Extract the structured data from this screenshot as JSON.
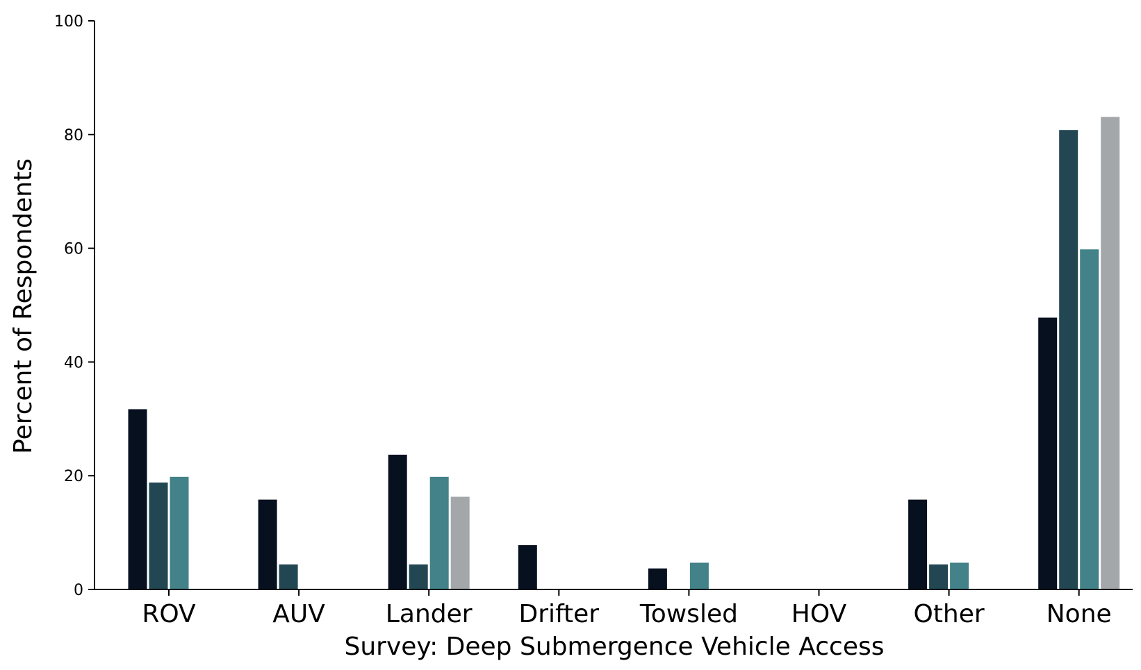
{
  "chart_data": {
    "type": "bar",
    "xlabel": "Survey: Deep Submergence Vehicle Access",
    "ylabel": "Percent of Respondents",
    "ylim": [
      0,
      100
    ],
    "yticks": [
      0,
      20,
      40,
      60,
      80,
      100
    ],
    "grid": false,
    "categories": [
      "ROV",
      "AUV",
      "Lander",
      "Drifter",
      "Towsled",
      "HOV",
      "Other",
      "None"
    ],
    "series": [
      {
        "color": "#07101f",
        "values": [
          31.7,
          15.8,
          23.7,
          7.8,
          3.7,
          0,
          15.8,
          47.8
        ]
      },
      {
        "color": "#224652",
        "values": [
          18.8,
          4.4,
          4.4,
          0,
          0,
          0,
          4.4,
          80.8
        ]
      },
      {
        "color": "#428288",
        "values": [
          19.8,
          0,
          19.8,
          0,
          4.7,
          0,
          4.7,
          59.8
        ]
      },
      {
        "color": "#a4a7aa",
        "values": [
          0,
          0,
          16.3,
          0,
          0,
          0,
          0,
          83.1
        ]
      }
    ]
  }
}
